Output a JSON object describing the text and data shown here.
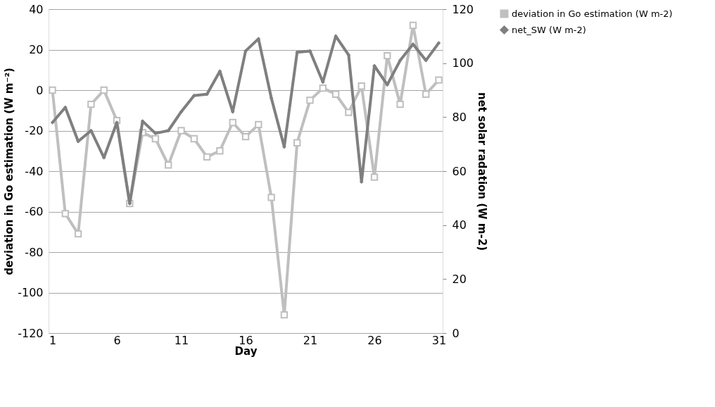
{
  "chart_data": {
    "type": "line",
    "xlabel": "Day",
    "ylabel": "deviation in Go estimation (W m⁻²)",
    "y2label": "net  solar radation (W m-2)",
    "x": [
      1,
      2,
      3,
      4,
      5,
      6,
      7,
      8,
      9,
      10,
      11,
      12,
      13,
      14,
      15,
      16,
      17,
      18,
      19,
      20,
      21,
      22,
      23,
      24,
      25,
      26,
      27,
      28,
      29,
      30,
      31
    ],
    "xlim": [
      0.7,
      31.3
    ],
    "xticks": [
      1,
      6,
      11,
      16,
      21,
      26,
      31
    ],
    "ylim": [
      -120,
      40
    ],
    "yticks": [
      -120,
      -100,
      -80,
      -60,
      -40,
      -20,
      0,
      20,
      40
    ],
    "y2lim": [
      0,
      120
    ],
    "y2ticks": [
      0,
      20,
      40,
      60,
      80,
      100,
      120
    ],
    "grid": "y",
    "legend": "top right",
    "series": [
      {
        "name": "deviation in Go estimation (W m-2)",
        "color": "#bfbfbf",
        "marker": "square",
        "values": [
          0,
          -61,
          -71,
          -7,
          0,
          -15,
          -56,
          -21,
          -24,
          -37,
          -20,
          -24,
          -33,
          -30,
          -16,
          -23,
          -17,
          -53,
          -111,
          -26,
          -5,
          1,
          -2,
          -11,
          2,
          -43,
          17,
          -7,
          32,
          -2,
          5
        ]
      },
      {
        "name": "net_SW (W m-2)",
        "color": "#7f7f7f",
        "marker": "diamond",
        "axis": "y2",
        "values": [
          78,
          83.6,
          71,
          75,
          65,
          78,
          48,
          78.5,
          74,
          75,
          82,
          88,
          88.5,
          97,
          82,
          104.5,
          109,
          87,
          69,
          104,
          104.5,
          93,
          110,
          103,
          56,
          99,
          92,
          101,
          107,
          101,
          107.5
        ]
      }
    ]
  }
}
